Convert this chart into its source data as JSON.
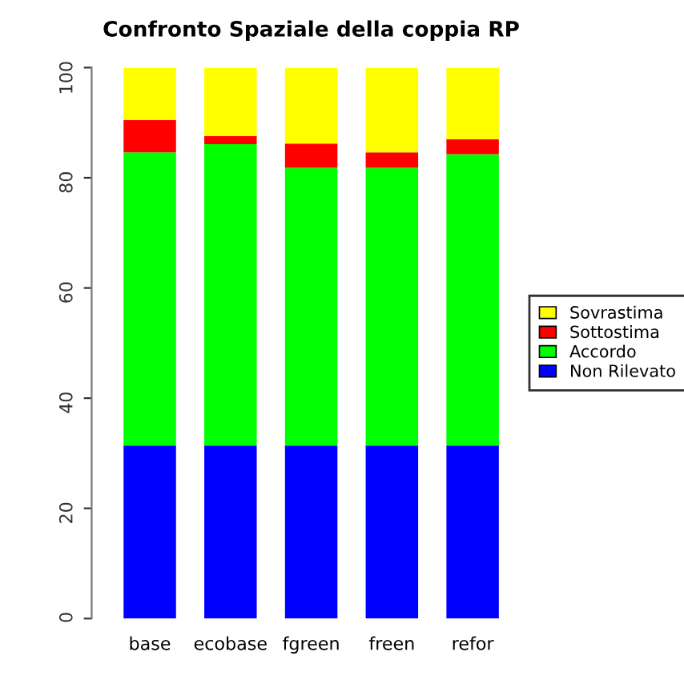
{
  "chart_data": {
    "type": "bar",
    "title": "Confronto Spaziale della coppia RP",
    "categories": [
      "base",
      "ecobase",
      "fgreen",
      "freen",
      "refor"
    ],
    "stacked": true,
    "ylim": [
      0,
      100
    ],
    "yticks": [
      0,
      20,
      40,
      60,
      80,
      100
    ],
    "grid": false,
    "legend": "right",
    "series": [
      {
        "name": "Non Rilevato",
        "color": "#0000ff",
        "values": [
          31.4,
          31.4,
          31.4,
          31.4,
          31.4
        ]
      },
      {
        "name": "Accordo",
        "color": "#00ff00",
        "values": [
          53.2,
          54.7,
          50.4,
          50.4,
          52.9
        ]
      },
      {
        "name": "Sottostima",
        "color": "#ff0000",
        "values": [
          5.9,
          1.5,
          4.4,
          2.8,
          2.7
        ]
      },
      {
        "name": "Sovrastima",
        "color": "#ffff00",
        "values": [
          9.5,
          12.4,
          13.8,
          15.4,
          13.0
        ]
      }
    ]
  }
}
